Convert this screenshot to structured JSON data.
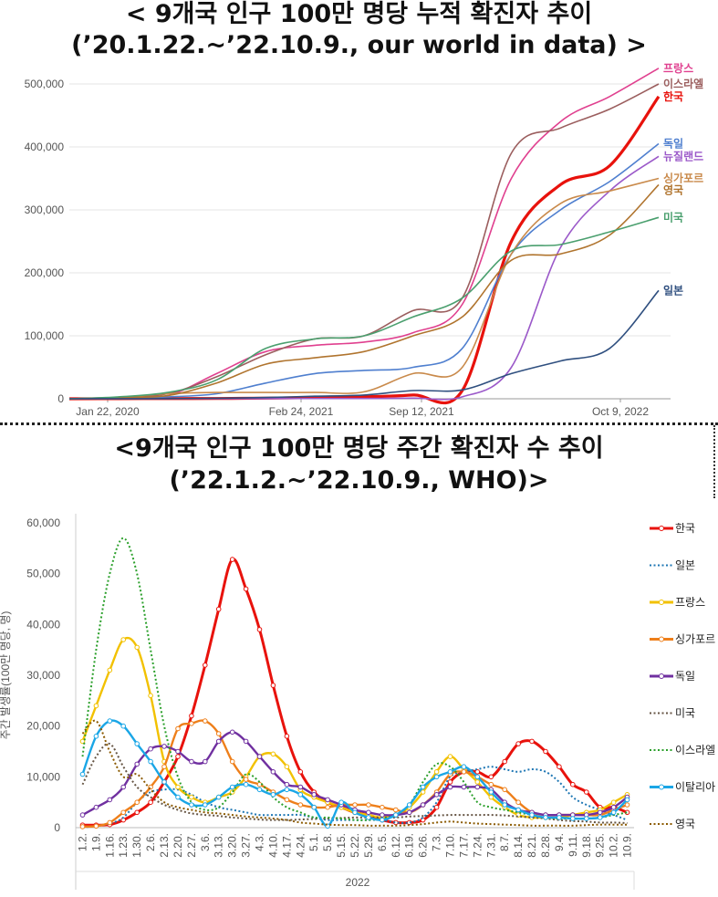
{
  "titles": {
    "top_line1": "< 9개국 인구 100만 명당 누적 확진자 추이",
    "top_line2": "(’20.1.22.~’22.10.9., our world in data) >",
    "bottom_line1": "<9개국 인구 100만 명당 주간 확진자 수 추이",
    "bottom_line2": "(’22.1.2.~’22.10.9., WHO)>"
  },
  "chart_data": [
    {
      "type": "line",
      "title": "< 9개국 인구 100만 명당 누적 확진자 추이 (’20.1.22.~’22.10.9., our world in data) >",
      "xlabel": "",
      "ylabel": "",
      "x_ticks": [
        "Jan 22, 2020",
        "Feb 24, 2021",
        "Sep 12, 2021",
        "Oct 9, 2022"
      ],
      "x_points": [
        "2020-01",
        "2020-04",
        "2020-07",
        "2020-10",
        "2021-01",
        "2021-04",
        "2021-07",
        "2021-10",
        "2022-01",
        "2022-03",
        "2022-05",
        "2022-07",
        "2022-10"
      ],
      "y_ticks": [
        "0",
        "100,000",
        "200,000",
        "300,000",
        "400,000",
        "500,000"
      ],
      "ylim": [
        0,
        530000
      ],
      "grid": true,
      "legend": "right",
      "series": [
        {
          "name": "프랑스",
          "color": "#e0408f",
          "values": [
            0,
            1000,
            5000,
            40000,
            75000,
            85000,
            90000,
            105000,
            150000,
            350000,
            440000,
            480000,
            525000
          ]
        },
        {
          "name": "이스라엘",
          "color": "#9b5e5e",
          "values": [
            0,
            2000,
            8000,
            35000,
            70000,
            95000,
            100000,
            140000,
            160000,
            390000,
            430000,
            460000,
            500000
          ]
        },
        {
          "name": "한국",
          "color": "#e8120c",
          "values": [
            0,
            200,
            300,
            500,
            1000,
            2000,
            3000,
            6000,
            13000,
            250000,
            340000,
            370000,
            480000
          ]
        },
        {
          "name": "독일",
          "color": "#4f7fcf",
          "values": [
            0,
            2000,
            3000,
            8000,
            25000,
            40000,
            45000,
            50000,
            80000,
            230000,
            300000,
            345000,
            405000
          ]
        },
        {
          "name": "뉴질랜드",
          "color": "#9b59c9",
          "values": [
            0,
            300,
            300,
            300,
            300,
            400,
            500,
            1000,
            3000,
            50000,
            240000,
            330000,
            385000
          ]
        },
        {
          "name": "싱가포르",
          "color": "#c98a4b",
          "values": [
            0,
            2000,
            8000,
            10000,
            10000,
            10000,
            11000,
            40000,
            50000,
            230000,
            310000,
            330000,
            350000
          ]
        },
        {
          "name": "영국",
          "color": "#b0742e",
          "values": [
            0,
            2000,
            5000,
            25000,
            55000,
            65000,
            75000,
            100000,
            130000,
            220000,
            230000,
            260000,
            340000
          ]
        },
        {
          "name": "미국",
          "color": "#4a9f6e",
          "values": [
            0,
            3000,
            10000,
            30000,
            80000,
            95000,
            100000,
            130000,
            160000,
            235000,
            245000,
            265000,
            288000
          ]
        },
        {
          "name": "일본",
          "color": "#2f4f7f",
          "values": [
            0,
            100,
            300,
            800,
            2000,
            4000,
            6000,
            13000,
            14000,
            40000,
            60000,
            80000,
            172000
          ]
        }
      ]
    },
    {
      "type": "line",
      "title": "<9개국 인구 100만 명당 주간 확진자 수 추이 (’22.1.2.~’22.10.9., WHO)>",
      "xlabel": "2022",
      "ylabel": "주간 발생률(100만 명당, 명)",
      "categories": [
        "1.2.",
        "1.9.",
        "1.16.",
        "1.23.",
        "1.30.",
        "2.6.",
        "2.13.",
        "2.20.",
        "2.27.",
        "3.6.",
        "3.13.",
        "3.20.",
        "3.27.",
        "4.3.",
        "4.10.",
        "4.17.",
        "4.24.",
        "5.1.",
        "5.8.",
        "5.15.",
        "5.22.",
        "5.29.",
        "6.5.",
        "6.12.",
        "6.19.",
        "6.26.",
        "7.3.",
        "7.10.",
        "7.17.",
        "7.24.",
        "7.31.",
        "8.7.",
        "8.14.",
        "8.21.",
        "8.28.",
        "9.4.",
        "9.11.",
        "9.18.",
        "9.25.",
        "10.2.",
        "10.9."
      ],
      "y_ticks": [
        "0",
        "10,000",
        "20,000",
        "30,000",
        "40,000",
        "50,000",
        "60,000"
      ],
      "ylim": [
        0,
        60000
      ],
      "grid": false,
      "legend": "right",
      "series": [
        {
          "name": "한국",
          "color": "#e8120c",
          "style": "solid",
          "values": [
            500,
            500,
            600,
            1500,
            3000,
            5000,
            9000,
            14000,
            22000,
            32000,
            43000,
            52800,
            47000,
            39000,
            28000,
            18000,
            11000,
            7000,
            5000,
            4000,
            3000,
            2500,
            1500,
            1000,
            1000,
            1500,
            4000,
            9000,
            11000,
            11000,
            10000,
            13000,
            16500,
            17000,
            15000,
            12000,
            8500,
            7000,
            4000,
            4000,
            3000
          ]
        },
        {
          "name": "일본",
          "color": "#1f77b4",
          "style": "dotted",
          "values": [
            100,
            300,
            800,
            2000,
            5000,
            7000,
            7500,
            7500,
            6500,
            5000,
            4000,
            3500,
            3000,
            2500,
            2500,
            2500,
            2500,
            2000,
            1500,
            1500,
            1500,
            1500,
            1500,
            1000,
            1000,
            2000,
            5000,
            10000,
            11000,
            11500,
            12000,
            11500,
            11000,
            11500,
            11000,
            9000,
            6000,
            4500,
            3500,
            2500,
            1500
          ]
        },
        {
          "name": "프랑스",
          "color": "#f2c100",
          "style": "solid",
          "values": [
            17000,
            24000,
            31000,
            37000,
            35500,
            26000,
            13000,
            8000,
            6000,
            5000,
            6000,
            7000,
            10000,
            14000,
            14500,
            12000,
            7500,
            6000,
            5000,
            4000,
            3000,
            2500,
            2000,
            2500,
            4000,
            7000,
            11000,
            14000,
            11500,
            9000,
            6000,
            4000,
            2500,
            2000,
            2000,
            2000,
            2500,
            3000,
            3500,
            5000,
            6500
          ]
        },
        {
          "name": "싱가포르",
          "color": "#ee7f1a",
          "style": "solid",
          "values": [
            200,
            300,
            1000,
            3000,
            5000,
            8000,
            12000,
            19500,
            20500,
            21000,
            18500,
            13000,
            9500,
            8500,
            7000,
            5500,
            4500,
            4000,
            4000,
            4500,
            4500,
            4500,
            4000,
            3500,
            3000,
            4500,
            7000,
            10500,
            11000,
            10000,
            8500,
            7500,
            5000,
            3000,
            2500,
            2500,
            2500,
            2500,
            2500,
            3500,
            4500
          ]
        },
        {
          "name": "독일",
          "color": "#7030a0",
          "style": "solid",
          "values": [
            2500,
            4000,
            5500,
            8000,
            12500,
            15500,
            16000,
            15000,
            13000,
            13000,
            17000,
            18800,
            17000,
            14000,
            11000,
            8500,
            8000,
            6500,
            5500,
            4500,
            3500,
            3000,
            2500,
            2500,
            3000,
            4500,
            6500,
            8000,
            8000,
            8000,
            7500,
            5000,
            3500,
            3000,
            2500,
            2500,
            2500,
            2500,
            3000,
            4000,
            6000
          ]
        },
        {
          "name": "미국",
          "color": "#665544",
          "style": "dotted",
          "values": [
            8500,
            14000,
            16500,
            12000,
            8000,
            6000,
            4500,
            3500,
            2800,
            2500,
            2300,
            2000,
            1800,
            1600,
            1500,
            1500,
            1600,
            1700,
            1800,
            1900,
            2000,
            2000,
            2000,
            2000,
            2200,
            2300,
            2400,
            2500,
            2500,
            2500,
            2500,
            2400,
            2200,
            2000,
            1800,
            1500,
            1300,
            1200,
            1000,
            1000,
            900
          ]
        },
        {
          "name": "이스라엘",
          "color": "#2ca02c",
          "style": "dotted",
          "values": [
            14000,
            35000,
            50000,
            57000,
            50000,
            35000,
            20000,
            10000,
            5000,
            3500,
            4000,
            7000,
            10500,
            9000,
            6000,
            4000,
            3000,
            2000,
            2000,
            1800,
            1500,
            1500,
            1800,
            2500,
            4500,
            9000,
            12500,
            12000,
            9000,
            5000,
            4000,
            3500,
            3000,
            2500,
            2000,
            1800,
            1800,
            1800,
            2000,
            2500,
            3000
          ]
        },
        {
          "name": "이탈리아",
          "color": "#1aa6e6",
          "style": "solid",
          "values": [
            10500,
            18000,
            21000,
            20000,
            16500,
            13000,
            9000,
            6000,
            4500,
            4500,
            6000,
            8000,
            8500,
            7500,
            6500,
            7500,
            6500,
            4000,
            300,
            5000,
            3000,
            2000,
            1500,
            2500,
            4500,
            8000,
            10000,
            11000,
            12000,
            10000,
            7000,
            4500,
            3500,
            2500,
            2000,
            2000,
            1800,
            1800,
            2000,
            3000,
            5500
          ]
        },
        {
          "name": "영국",
          "color": "#8b5a00",
          "style": "dotted",
          "values": [
            18500,
            21000,
            15000,
            10000,
            10500,
            7500,
            5000,
            4000,
            3500,
            3000,
            2800,
            2500,
            2200,
            2000,
            1800,
            1500,
            1000,
            800,
            600,
            500,
            500,
            400,
            400,
            400,
            500,
            700,
            1000,
            1200,
            1000,
            800,
            700,
            600,
            500,
            400,
            400,
            400,
            400,
            500,
            600,
            600,
            600
          ]
        }
      ]
    }
  ]
}
